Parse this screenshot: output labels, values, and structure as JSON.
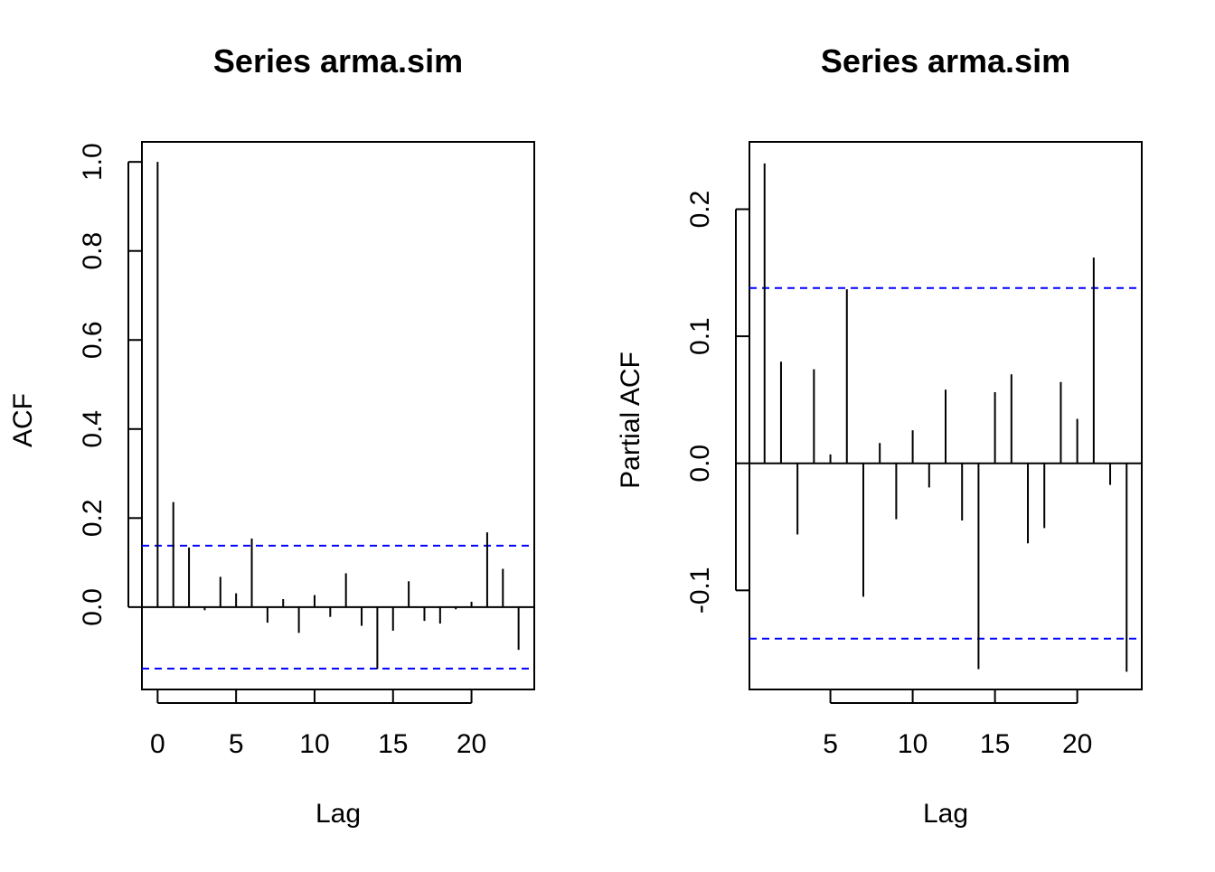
{
  "chart_data": [
    {
      "type": "bar",
      "title": "Series  arma.sim",
      "xlabel": "Lag",
      "ylabel": "ACF",
      "xlim": [
        -1,
        24
      ],
      "ylim": [
        -0.185,
        1.045
      ],
      "x_ticks": [
        0,
        5,
        10,
        15,
        20
      ],
      "x_tick_labels": [
        "0",
        "5",
        "10",
        "15",
        "20"
      ],
      "y_ticks": [
        0.0,
        0.2,
        0.4,
        0.6,
        0.8,
        1.0
      ],
      "y_tick_labels": [
        "0.0",
        "0.2",
        "0.4",
        "0.6",
        "0.8",
        "1.0"
      ],
      "lags": [
        0,
        1,
        2,
        3,
        4,
        5,
        6,
        7,
        8,
        9,
        10,
        11,
        12,
        13,
        14,
        15,
        16,
        17,
        18,
        19,
        20,
        21,
        22,
        23
      ],
      "values": [
        1.0,
        0.236,
        0.134,
        -0.007,
        0.068,
        0.031,
        0.154,
        -0.035,
        0.018,
        -0.058,
        0.027,
        -0.022,
        0.076,
        -0.042,
        -0.139,
        -0.053,
        0.058,
        -0.031,
        -0.037,
        -0.005,
        0.012,
        0.168,
        0.086,
        -0.096
      ],
      "confidence_bounds": [
        0.138,
        -0.138
      ],
      "confidence_color": "#0000ff",
      "grid": false
    },
    {
      "type": "bar",
      "title": "Series  arma.sim",
      "xlabel": "Lag",
      "ylabel": "Partial ACF",
      "xlim": [
        0.08,
        23.92
      ],
      "ylim": [
        -0.178,
        0.253
      ],
      "x_ticks": [
        5,
        10,
        15,
        20
      ],
      "x_tick_labels": [
        "5",
        "10",
        "15",
        "20"
      ],
      "y_ticks": [
        -0.1,
        0.0,
        0.1,
        0.2
      ],
      "y_tick_labels": [
        "-0.1",
        "0.0",
        "0.1",
        "0.2"
      ],
      "lags": [
        1,
        2,
        3,
        4,
        5,
        6,
        7,
        8,
        9,
        10,
        11,
        12,
        13,
        14,
        15,
        16,
        17,
        18,
        19,
        20,
        21,
        22,
        23
      ],
      "values": [
        0.236,
        0.08,
        -0.056,
        0.074,
        0.007,
        0.137,
        -0.105,
        0.016,
        -0.044,
        0.026,
        -0.019,
        0.058,
        -0.045,
        -0.162,
        0.056,
        0.07,
        -0.063,
        -0.051,
        0.064,
        0.035,
        0.162,
        -0.017,
        -0.164
      ],
      "confidence_bounds": [
        0.138,
        -0.138
      ],
      "confidence_color": "#0000ff",
      "grid": false
    }
  ]
}
